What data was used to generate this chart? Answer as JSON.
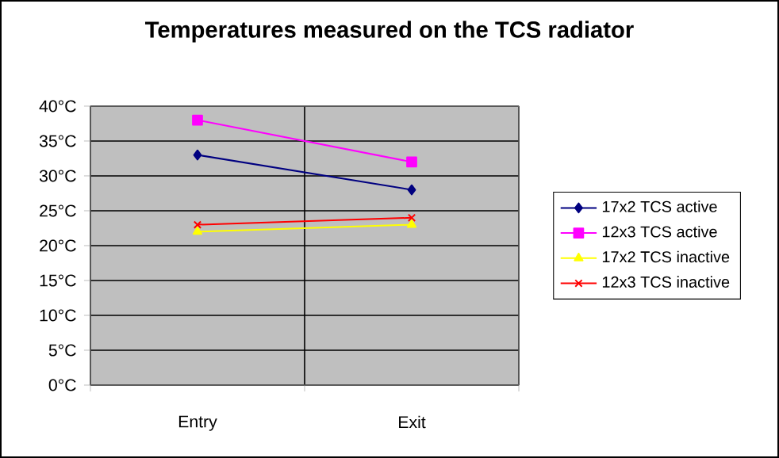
{
  "chart_data": {
    "type": "line",
    "title": "Temperatures measured on the TCS radiator",
    "categories": [
      "Entry",
      "Exit"
    ],
    "series": [
      {
        "name": "17x2 TCS active",
        "color": "#000080",
        "marker": "diamond",
        "values": [
          33,
          28
        ]
      },
      {
        "name": "12x3 TCS active",
        "color": "#ff00ff",
        "marker": "square",
        "values": [
          38,
          32
        ]
      },
      {
        "name": "17x2 TCS inactive",
        "color": "#ffff00",
        "marker": "triangle",
        "values": [
          22,
          23
        ]
      },
      {
        "name": "12x3 TCS inactive",
        "color": "#ff0000",
        "marker": "cross",
        "values": [
          23,
          24
        ]
      }
    ],
    "ylim": [
      0,
      40
    ],
    "yticks": [
      {
        "value": 0,
        "label": "0°C"
      },
      {
        "value": 5,
        "label": "5°C"
      },
      {
        "value": 10,
        "label": "10°C"
      },
      {
        "value": 15,
        "label": "15°C"
      },
      {
        "value": 20,
        "label": "20°C"
      },
      {
        "value": 25,
        "label": "25°C"
      },
      {
        "value": 30,
        "label": "30°C"
      },
      {
        "value": 35,
        "label": "35°C"
      },
      {
        "value": 40,
        "label": "40°C"
      }
    ],
    "grid": true,
    "legend": "right",
    "line_style": "solid"
  }
}
